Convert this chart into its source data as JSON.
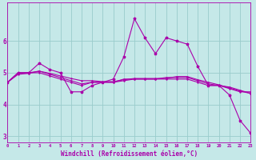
{
  "xlabel": "Windchill (Refroidissement éolien,°C)",
  "background_color": "#c5e8e8",
  "line_color": "#aa00aa",
  "grid_color": "#99cccc",
  "x": [
    0,
    1,
    2,
    3,
    4,
    5,
    6,
    7,
    8,
    9,
    10,
    11,
    12,
    13,
    14,
    15,
    16,
    17,
    18,
    19,
    20,
    21,
    22,
    23
  ],
  "line1": [
    4.7,
    5.0,
    5.0,
    5.3,
    5.1,
    5.0,
    4.4,
    4.4,
    4.6,
    4.7,
    4.8,
    5.5,
    6.7,
    6.1,
    5.6,
    6.1,
    6.0,
    5.9,
    5.2,
    4.6,
    4.6,
    4.3,
    3.5,
    3.1
  ],
  "line2": [
    4.7,
    5.0,
    5.0,
    5.0,
    4.9,
    4.8,
    4.7,
    4.6,
    4.7,
    4.7,
    4.7,
    4.8,
    4.8,
    4.8,
    4.8,
    4.8,
    4.8,
    4.8,
    4.7,
    4.6,
    4.6,
    4.5,
    4.4,
    4.4
  ],
  "line3": [
    4.7,
    5.0,
    5.0,
    5.05,
    4.95,
    4.85,
    4.75,
    4.65,
    4.7,
    4.7,
    4.7,
    4.75,
    4.8,
    4.8,
    4.8,
    4.85,
    4.85,
    4.85,
    4.75,
    4.65,
    4.6,
    4.55,
    4.45,
    4.35
  ],
  "line4": [
    4.7,
    4.95,
    4.98,
    5.05,
    4.98,
    4.9,
    4.82,
    4.75,
    4.75,
    4.72,
    4.72,
    4.78,
    4.82,
    4.82,
    4.82,
    4.82,
    4.88,
    4.88,
    4.78,
    4.7,
    4.62,
    4.52,
    4.42,
    4.35
  ],
  "xlim": [
    0,
    23
  ],
  "ylim": [
    2.8,
    7.2
  ],
  "yticks": [
    3,
    4,
    5,
    6
  ],
  "xticks": [
    0,
    1,
    2,
    3,
    4,
    5,
    6,
    7,
    8,
    9,
    10,
    11,
    12,
    13,
    14,
    15,
    16,
    17,
    18,
    19,
    20,
    21,
    22,
    23
  ]
}
